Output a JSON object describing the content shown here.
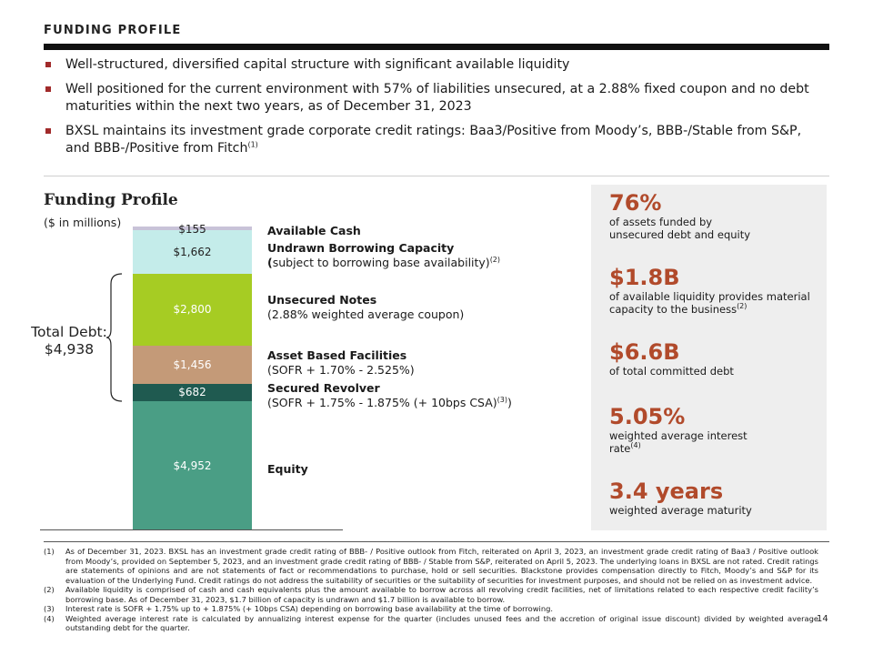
{
  "header": {
    "title": "FUNDING PROFILE"
  },
  "bullets": [
    {
      "text": "Well-structured, diversified capital structure with significant available liquidity",
      "sup": ""
    },
    {
      "text": "Well positioned for the current environment with 57% of liabilities unsecured, at a 2.88% fixed coupon and no debt maturities within the next two years, as of December 31, 2023",
      "sup": ""
    },
    {
      "text": "BXSL maintains its investment grade corporate credit ratings: Baa3/Positive from Moody’s, BBB-/Stable from S&P, and BBB-/Positive from Fitch",
      "sup": "(1)"
    }
  ],
  "funding_profile": {
    "title": "Funding Profile",
    "units": "($ in millions)",
    "total_debt_line1": "Total Debt:",
    "total_debt_line2": "$4,938"
  },
  "chart_data": {
    "type": "bar",
    "stacked": true,
    "categories": [
      "Funding Profile"
    ],
    "series": [
      {
        "name": "Equity",
        "value": 4952,
        "label": "$4,952",
        "color": "#4a9e85",
        "text_color": "#ffffff"
      },
      {
        "name": "Secured Revolver",
        "value": 682,
        "label": "$682",
        "color": "#1f5a50",
        "text_color": "#ffffff"
      },
      {
        "name": "Asset Based Facilities",
        "value": 1456,
        "label": "$1,456",
        "color": "#c49a78",
        "text_color": "#ffffff"
      },
      {
        "name": "Unsecured Notes",
        "value": 2800,
        "label": "$2,800",
        "color": "#a6cc23",
        "text_color": "#ffffff"
      },
      {
        "name": "Undrawn Borrowing Capacity",
        "value": 1662,
        "label": "$1,662",
        "color": "#c4ecea",
        "text_color": "#222222"
      },
      {
        "name": "Available Cash",
        "value": 155,
        "label": "$155",
        "color": "#c8c3d8",
        "text_color": "#222222"
      }
    ]
  },
  "segment_labels": {
    "cash": {
      "bold": "Available Cash",
      "rest": ""
    },
    "undrawn": {
      "bold": "Undrawn Borrowing Capacity (",
      "rest": "subject to borrowing base availability)",
      "sup": "(2)"
    },
    "unsecured": {
      "bold": "Unsecured Notes",
      "rest": "(2.88% weighted average coupon)"
    },
    "abf": {
      "bold": "Asset Based Facilities",
      "rest": "(SOFR + 1.70% - 2.525%)"
    },
    "revolver": {
      "bold": "Secured Revolver",
      "rest": "(SOFR + 1.75% - 1.875% (+ 10bps CSA)",
      "sup": "(3)",
      "tail": ")"
    },
    "equity": {
      "bold": "Equity",
      "rest": ""
    }
  },
  "stats": [
    {
      "value": "76%",
      "desc": "of assets funded by unsecured debt and equity",
      "sup": ""
    },
    {
      "value": "$1.8B",
      "desc": "of available liquidity provides material capacity to the business",
      "sup": "(2)"
    },
    {
      "value": "$6.6B",
      "desc": "of total committed debt",
      "sup": ""
    },
    {
      "value": "5.05%",
      "desc": "weighted average interest rate",
      "sup": "(4)"
    },
    {
      "value": "3.4 years",
      "desc": "weighted average maturity",
      "sup": ""
    }
  ],
  "footnotes": [
    {
      "num": "(1)",
      "text": "As of December 31, 2023. BXSL has an investment grade credit rating of BBB- / Positive outlook from Fitch, reiterated on April 3, 2023, an investment grade credit rating of Baa3 / Positive outlook from Moody’s, provided on September 5, 2023, and an investment grade credit rating of BBB- / Stable from S&P, reiterated on April 5, 2023. The underlying loans in BXSL are not rated. Credit ratings are statements of opinions and are not statements of fact or recommendations to purchase, hold or sell securities. Blackstone provides compensation directly to Fitch, Moody’s and S&P for its evaluation of the Underlying Fund. Credit ratings do not address the suitability of securities or the suitability of securities for investment purposes, and should not be relied on as investment advice."
    },
    {
      "num": "(2)",
      "text": "Available liquidity is comprised of cash and cash equivalents plus the amount available to borrow across all revolving credit facilities, net of limitations related to each respective credit facility’s borrowing base. As of December 31, 2023, $1.7 billion of capacity is undrawn and $1.7 billion is available to borrow."
    },
    {
      "num": "(3)",
      "text": "Interest rate is SOFR + 1.75% up to + 1.875% (+ 10bps CSA) depending on borrowing base availability at the time of borrowing."
    },
    {
      "num": "(4)",
      "text": "Weighted average interest rate is calculated by annualizing interest expense for the quarter (includes unused fees and the accretion of original issue discount) divided by weighted average outstanding debt for the quarter."
    }
  ],
  "page_number": "14"
}
